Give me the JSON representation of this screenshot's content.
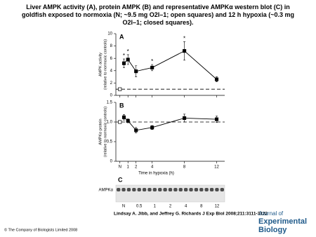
{
  "title": "Liver AMPK activity (A), protein AMPK (B) and representative AMPKα western blot (C) in goldfish exposed to normoxia (N; ~9.5 mg O2l–1; open squares) and 12 h hypoxia (~0.3 mg O2l–1; closed squares).",
  "chart_data": [
    {
      "type": "line",
      "label": "A",
      "ylabel": [
        "AMPK activity",
        "(relative to normoxic controls)"
      ],
      "xlim": [
        -0.5,
        13
      ],
      "xticks": [
        {
          "value": 0,
          "label": "N"
        },
        1,
        2,
        4,
        8,
        12
      ],
      "ylim": [
        0,
        10
      ],
      "yticks": [
        0,
        2,
        4,
        6,
        8,
        10
      ],
      "reference_line": 1,
      "series": [
        {
          "marker": "filled",
          "x": [
            0.5,
            1,
            2,
            4,
            8,
            12
          ],
          "values": [
            5.2,
            5.8,
            3.9,
            4.5,
            7.2,
            2.6
          ],
          "errors": [
            0.7,
            0.8,
            0.9,
            0.5,
            1.5,
            0.4
          ]
        },
        {
          "marker": "open",
          "x": [
            0
          ],
          "values": [
            1
          ]
        }
      ],
      "annotations": [
        {
          "text": "*",
          "x": 0.5
        },
        {
          "text": "*",
          "x": 1
        },
        {
          "text": "*",
          "x": 4
        },
        {
          "text": "*",
          "x": 8
        }
      ]
    },
    {
      "type": "line",
      "label": "B",
      "ylabel": [
        "AMPKα protein",
        "(relative to normoxic controls)"
      ],
      "xlabel": "Time in hypoxia (h)",
      "xlim": [
        -0.5,
        13
      ],
      "xticks": [
        {
          "value": 0,
          "label": "N"
        },
        1,
        2,
        4,
        8,
        12
      ],
      "ylim": [
        0,
        1.5
      ],
      "yticks": [
        0,
        0.5,
        {
          "value": 1,
          "label": "1.0"
        },
        1.5
      ],
      "reference_line": 1,
      "series": [
        {
          "marker": "filled",
          "x": [
            0.5,
            1,
            2,
            4,
            8,
            12
          ],
          "values": [
            1.12,
            1.03,
            0.79,
            0.86,
            1.1,
            1.07
          ],
          "errors": [
            0.07,
            0.05,
            0.07,
            0.05,
            0.1,
            0.08
          ]
        },
        {
          "marker": "open",
          "x": [
            0
          ],
          "values": [
            1
          ]
        }
      ]
    }
  ],
  "blot": {
    "label": "C",
    "row_label": "AMPKα",
    "lanes": [
      "N",
      "0.5",
      "1",
      "2",
      "4",
      "8",
      "12"
    ]
  },
  "citation": "Lindsay A. Jibb, and Jeffrey G. Richards J Exp Biol 2008;211:3111-3122",
  "copyright": "© The Company of Biologists Limited 2008",
  "logo": {
    "line1": "Journal of",
    "line2": "Experimental",
    "line3": "Biology"
  }
}
